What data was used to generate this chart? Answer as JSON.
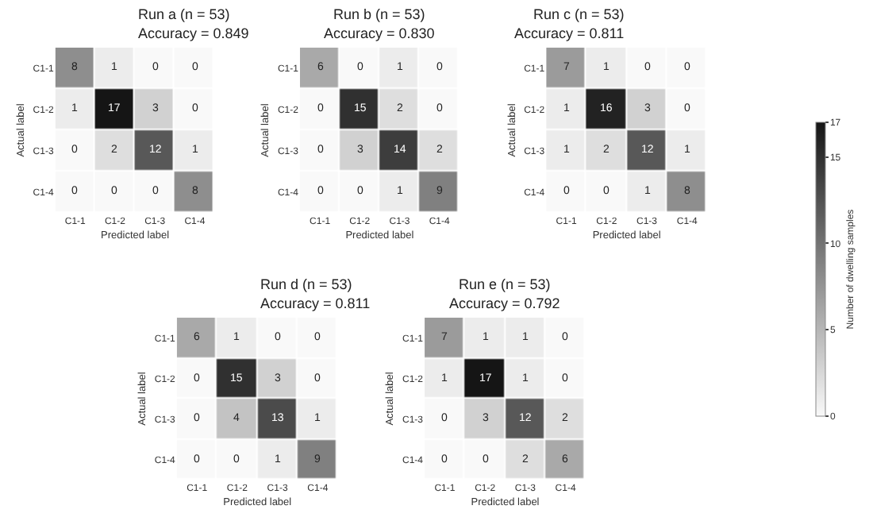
{
  "chart_data": [
    {
      "type": "heatmap",
      "title": "Run a (n = 53)",
      "subtitle": "Accuracy = 0.849",
      "xlabel": "Predicted label",
      "ylabel": "Actual label",
      "categories": [
        "C1-1",
        "C1-2",
        "C1-3",
        "C1-4"
      ],
      "y_categories": [
        "C1-1",
        "C1-2",
        "C1-3",
        "C1-4"
      ],
      "cells": [
        [
          8,
          1,
          0,
          0
        ],
        [
          1,
          17,
          3,
          0
        ],
        [
          0,
          2,
          12,
          1
        ],
        [
          0,
          0,
          0,
          8
        ]
      ],
      "data_labels": true
    },
    {
      "type": "heatmap",
      "title": "Run b (n = 53)",
      "subtitle": "Accuracy = 0.830",
      "xlabel": "Predicted label",
      "ylabel": "Actual label",
      "categories": [
        "C1-1",
        "C1-2",
        "C1-3",
        "C1-4"
      ],
      "y_categories": [
        "C1-1",
        "C1-2",
        "C1-3",
        "C1-4"
      ],
      "cells": [
        [
          6,
          0,
          1,
          0
        ],
        [
          0,
          15,
          2,
          0
        ],
        [
          0,
          3,
          14,
          2
        ],
        [
          0,
          0,
          1,
          9
        ]
      ],
      "data_labels": true
    },
    {
      "type": "heatmap",
      "title": "Run c (n = 53)",
      "subtitle": "Accuracy = 0.811",
      "xlabel": "Predicted label",
      "ylabel": "Actual label",
      "categories": [
        "C1-1",
        "C1-2",
        "C1-3",
        "C1-4"
      ],
      "y_categories": [
        "C1-1",
        "C1-2",
        "C1-3",
        "C1-4"
      ],
      "cells": [
        [
          7,
          1,
          0,
          0
        ],
        [
          1,
          16,
          3,
          0
        ],
        [
          1,
          2,
          12,
          1
        ],
        [
          0,
          0,
          1,
          8
        ]
      ],
      "data_labels": true,
      "clabel": "Number of dwelling samples",
      "clim": [
        0,
        17
      ],
      "cticks": [
        0,
        5,
        10,
        15,
        17
      ]
    },
    {
      "type": "heatmap",
      "title": "Run d (n = 53)",
      "subtitle": "Accuracy = 0.811",
      "xlabel": "Predicted label",
      "ylabel": "Actual label",
      "categories": [
        "C1-1",
        "C1-2",
        "C1-3",
        "C1-4"
      ],
      "y_categories": [
        "C1-1",
        "C1-2",
        "C1-3",
        "C1-4"
      ],
      "cells": [
        [
          6,
          1,
          0,
          0
        ],
        [
          0,
          15,
          3,
          0
        ],
        [
          0,
          4,
          13,
          1
        ],
        [
          0,
          0,
          1,
          9
        ]
      ],
      "data_labels": true
    },
    {
      "type": "heatmap",
      "title": "Run e (n = 53)",
      "subtitle": "Accuracy = 0.792",
      "xlabel": "Predicted label",
      "ylabel": "Actual label",
      "categories": [
        "C1-1",
        "C1-2",
        "C1-3",
        "C1-4"
      ],
      "y_categories": [
        "C1-1",
        "C1-2",
        "C1-3",
        "C1-4"
      ],
      "cells": [
        [
          7,
          1,
          1,
          0
        ],
        [
          1,
          17,
          1,
          0
        ],
        [
          0,
          3,
          12,
          2
        ],
        [
          0,
          0,
          2,
          6
        ]
      ],
      "data_labels": true
    }
  ]
}
